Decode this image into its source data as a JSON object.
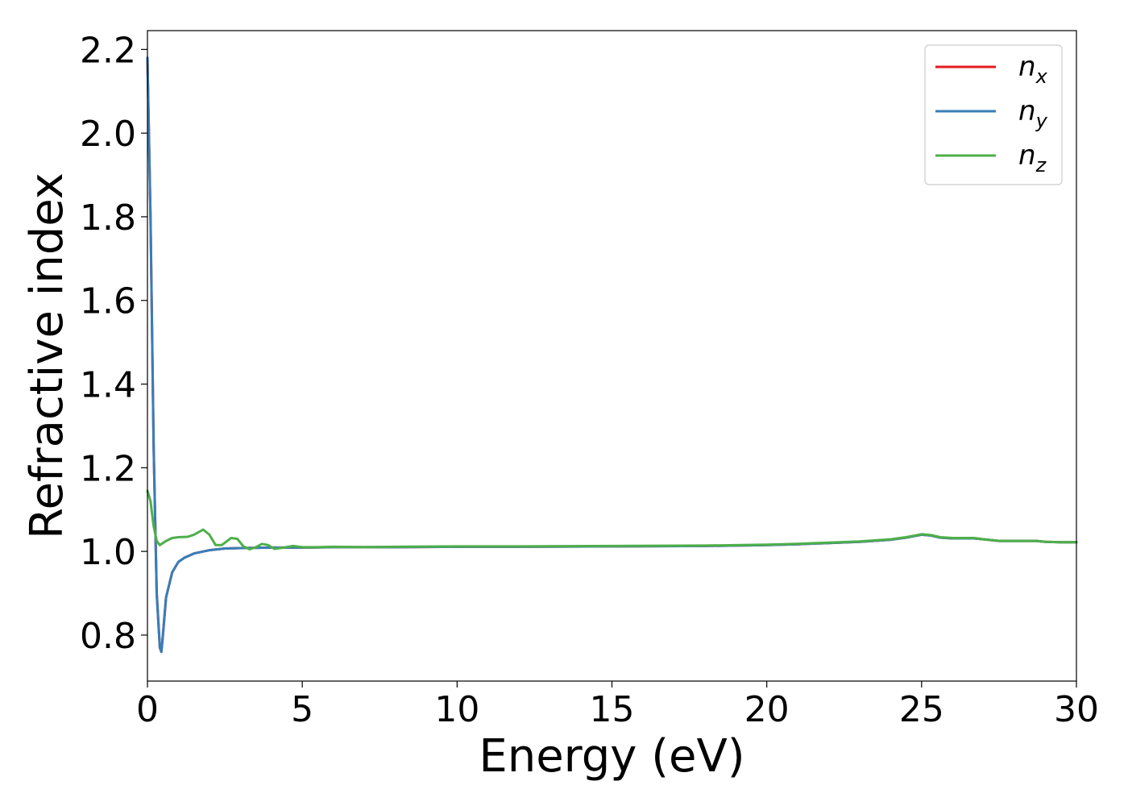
{
  "chart_data": {
    "type": "line",
    "title": "",
    "xlabel": "Energy (eV)",
    "ylabel": "Refractive index",
    "xlim": [
      0,
      30
    ],
    "ylim": [
      0.69,
      2.245
    ],
    "xticks": [
      0,
      5,
      10,
      15,
      20,
      25,
      30
    ],
    "xtick_labels": [
      "0",
      "5",
      "10",
      "15",
      "20",
      "25",
      "30"
    ],
    "yticks": [
      0.8,
      1.0,
      1.2,
      1.4,
      1.6,
      1.8,
      2.0,
      2.2
    ],
    "ytick_labels": [
      "0.8",
      "1.0",
      "1.2",
      "1.4",
      "1.6",
      "1.8",
      "2.0",
      "2.2"
    ],
    "grid": false,
    "legend_position": "top-right",
    "series": [
      {
        "name_base": "n",
        "name_sub": "x",
        "color": "#e41a1c",
        "x": [
          0,
          0.1,
          0.2,
          0.3,
          0.4,
          0.45,
          0.5,
          0.6,
          0.8,
          1.0,
          1.2,
          1.5,
          2.0,
          2.5,
          3.0,
          4.0,
          5.0,
          6.0,
          8.0,
          10.0,
          12.0,
          15.0,
          18.0,
          20.0,
          21.0,
          22.0,
          23.0,
          24.0,
          24.5,
          25.0,
          25.3,
          25.6,
          26.0,
          26.7,
          27.0,
          27.5,
          28.0,
          28.7,
          29.0,
          29.5,
          30.0
        ],
        "values": [
          2.18,
          1.8,
          1.25,
          0.9,
          0.77,
          0.76,
          0.8,
          0.89,
          0.95,
          0.975,
          0.985,
          0.995,
          1.003,
          1.007,
          1.008,
          1.009,
          1.009,
          1.01,
          1.01,
          1.011,
          1.011,
          1.012,
          1.013,
          1.015,
          1.017,
          1.02,
          1.023,
          1.028,
          1.033,
          1.04,
          1.038,
          1.033,
          1.031,
          1.031,
          1.029,
          1.025,
          1.025,
          1.025,
          1.023,
          1.022,
          1.022
        ]
      },
      {
        "name_base": "n",
        "name_sub": "y",
        "color": "#377eb8",
        "x": [
          0,
          0.1,
          0.2,
          0.3,
          0.4,
          0.45,
          0.5,
          0.6,
          0.8,
          1.0,
          1.2,
          1.5,
          2.0,
          2.5,
          3.0,
          4.0,
          5.0,
          6.0,
          8.0,
          10.0,
          12.0,
          15.0,
          18.0,
          20.0,
          21.0,
          22.0,
          23.0,
          24.0,
          24.5,
          25.0,
          25.3,
          25.6,
          26.0,
          26.7,
          27.0,
          27.5,
          28.0,
          28.7,
          29.0,
          29.5,
          30.0
        ],
        "values": [
          2.18,
          1.8,
          1.25,
          0.9,
          0.77,
          0.76,
          0.8,
          0.89,
          0.95,
          0.975,
          0.985,
          0.995,
          1.003,
          1.007,
          1.008,
          1.009,
          1.009,
          1.01,
          1.01,
          1.011,
          1.011,
          1.012,
          1.013,
          1.015,
          1.017,
          1.02,
          1.023,
          1.028,
          1.033,
          1.04,
          1.038,
          1.033,
          1.031,
          1.031,
          1.029,
          1.025,
          1.025,
          1.025,
          1.023,
          1.022,
          1.022
        ]
      },
      {
        "name_base": "n",
        "name_sub": "z",
        "color": "#4daf4a",
        "x": [
          0,
          0.1,
          0.2,
          0.3,
          0.4,
          0.6,
          0.8,
          1.0,
          1.3,
          1.5,
          1.8,
          2.0,
          2.2,
          2.4,
          2.7,
          2.9,
          3.1,
          3.3,
          3.5,
          3.7,
          3.9,
          4.1,
          4.4,
          4.7,
          5.0,
          5.5,
          6.0,
          7.0,
          8.0,
          10.0,
          12.0,
          15.0,
          18.0,
          20.0,
          21.0,
          22.0,
          23.0,
          24.0,
          24.5,
          25.0,
          25.3,
          25.6,
          26.0,
          26.7,
          27.0,
          27.5,
          28.0,
          28.7,
          29.0,
          29.5,
          30.0
        ],
        "values": [
          1.145,
          1.12,
          1.06,
          1.025,
          1.015,
          1.025,
          1.032,
          1.034,
          1.035,
          1.04,
          1.052,
          1.04,
          1.015,
          1.015,
          1.032,
          1.03,
          1.012,
          1.005,
          1.01,
          1.018,
          1.015,
          1.006,
          1.009,
          1.013,
          1.01,
          1.01,
          1.011,
          1.01,
          1.011,
          1.012,
          1.012,
          1.013,
          1.014,
          1.016,
          1.018,
          1.021,
          1.024,
          1.029,
          1.034,
          1.041,
          1.039,
          1.034,
          1.032,
          1.032,
          1.029,
          1.025,
          1.025,
          1.025,
          1.023,
          1.022,
          1.022
        ]
      }
    ]
  }
}
